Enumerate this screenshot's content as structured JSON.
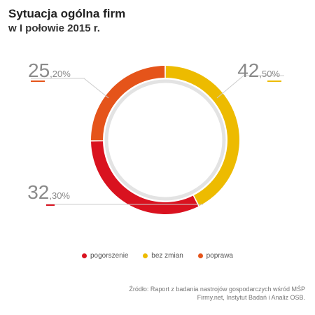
{
  "chart_data": {
    "type": "pie",
    "title": "Sytuacja ogólna firm",
    "subtitle": "w I połowie 2015 r.",
    "series": [
      {
        "name": "pogorszenie",
        "value": 32.3,
        "int_label": "32",
        "dec_label": ",30%",
        "color": "#d9121f"
      },
      {
        "name": "bez zmian",
        "value": 42.5,
        "int_label": "42",
        "dec_label": ",50%",
        "color": "#edbb00"
      },
      {
        "name": "poprawa",
        "value": 25.2,
        "int_label": "25",
        "dec_label": ",20%",
        "color": "#e5541a"
      }
    ],
    "legend_position": "bottom-center"
  },
  "source": {
    "line1": "Źródło: Raport z badania nastrojów gospodarczych wśród MŚP",
    "line2": "Firmy.net, Instytut Badań i Analiz OSB."
  }
}
